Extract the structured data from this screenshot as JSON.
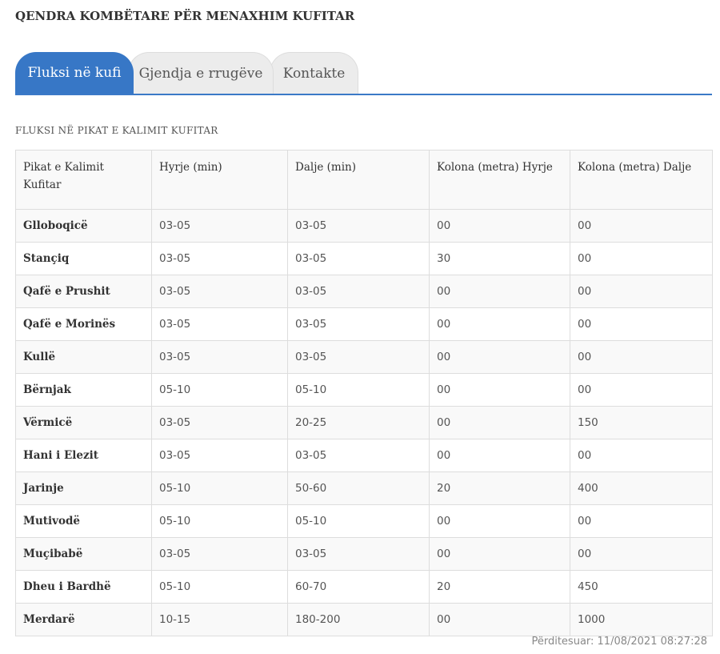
{
  "header": {
    "title": "QENDRA KOMBËTARE PËR MENAXHIM KUFITAR"
  },
  "tabs": [
    {
      "label": "Fluksi në kufi",
      "active": true
    },
    {
      "label": "Gjendja e rrugëve",
      "active": false
    },
    {
      "label": "Kontakte",
      "active": false
    }
  ],
  "section": {
    "title": "FLUKSI NË PIKAT E KALIMIT KUFITAR"
  },
  "table": {
    "headers": [
      "Pikat e Kalimit Kufitar",
      "Hyrje (min)",
      "Dalje (min)",
      "Kolona (metra) Hyrje",
      "Kolona (metra) Dalje"
    ],
    "rows": [
      [
        "Glloboqicë",
        "03-05",
        "03-05",
        "00",
        "00"
      ],
      [
        "Stançiq",
        "03-05",
        "03-05",
        "30",
        "00"
      ],
      [
        "Qafë e Prushit",
        "03-05",
        "03-05",
        "00",
        "00"
      ],
      [
        "Qafë e Morinës",
        "03-05",
        "03-05",
        "00",
        "00"
      ],
      [
        "Kullë",
        "03-05",
        "03-05",
        "00",
        "00"
      ],
      [
        "Bërnjak",
        "05-10",
        "05-10",
        "00",
        "00"
      ],
      [
        "Vërmicë",
        "03-05",
        "20-25",
        "00",
        "150"
      ],
      [
        "Hani i Elezit",
        "03-05",
        "03-05",
        "00",
        "00"
      ],
      [
        "Jarinje",
        "05-10",
        "50-60",
        "20",
        "400"
      ],
      [
        "Mutivodë",
        "05-10",
        "05-10",
        "00",
        "00"
      ],
      [
        "Muçibabë",
        "03-05",
        "03-05",
        "00",
        "00"
      ],
      [
        "Dheu i Bardhë",
        "05-10",
        "60-70",
        "20",
        "450"
      ],
      [
        "Merdarë",
        "10-15",
        "180-200",
        "00",
        "1000"
      ]
    ]
  },
  "footer": {
    "updated": "Përditesuar: 11/08/2021 08:27:28"
  },
  "colors": {
    "accent": "#3777c6",
    "tab_inactive": "#ececec",
    "border": "#dddddd"
  }
}
